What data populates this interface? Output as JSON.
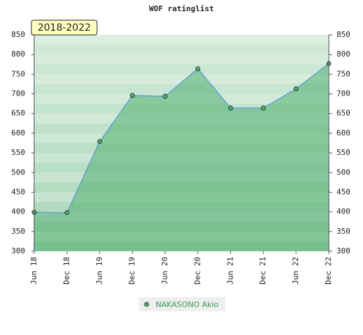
{
  "chart_data": {
    "type": "area",
    "title": "WOF ratinglist",
    "annotation": "2018-2022",
    "categories": [
      "Jun 18",
      "Dec 18",
      "Jun 19",
      "Dec 19",
      "Jun 20",
      "Dec 20",
      "Jun 21",
      "Dec 21",
      "Jun 22",
      "Dec 22"
    ],
    "series": [
      {
        "name": "NAKASONO Akio",
        "color": "#5b9bd5",
        "values": [
          399,
          398,
          579,
          696,
          694,
          764,
          664,
          664,
          713,
          777
        ]
      }
    ],
    "ylim": [
      300,
      850
    ],
    "yticks": [
      300,
      350,
      400,
      450,
      500,
      550,
      600,
      650,
      700,
      750,
      800,
      850
    ],
    "y2lim": [
      300,
      850
    ],
    "y2ticks": [
      300,
      350,
      400,
      450,
      500,
      550,
      600,
      650,
      700,
      750,
      800,
      850
    ],
    "grid": true
  }
}
